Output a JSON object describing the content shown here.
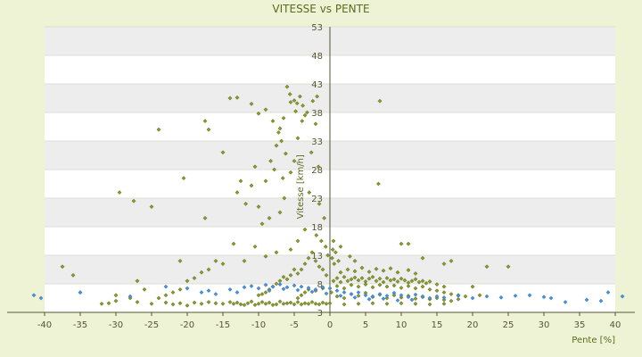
{
  "chart_data": {
    "type": "scatter",
    "title": "VITESSE vs PENTE",
    "xlabel": "Pente [%]",
    "ylabel": "Vitesse [km/h]",
    "xlim": [
      -40,
      40
    ],
    "ylim": [
      3,
      53
    ],
    "xticks": [
      -40,
      -35,
      -30,
      -25,
      -20,
      -15,
      -10,
      -5,
      0,
      5,
      10,
      15,
      20,
      25,
      30,
      35,
      40
    ],
    "yticks": [
      3,
      8,
      13,
      18,
      23,
      28,
      33,
      38,
      43,
      48,
      53
    ],
    "grid": true,
    "banded_background": true,
    "colors": {
      "background": "#eef3d6",
      "plot_band_light": "#ffffff",
      "plot_band_dark": "#ededed",
      "axis": "#555533",
      "text": "#5a6b1f",
      "series_green": "#8a9a2a",
      "series_blue": "#4a90d9"
    },
    "series": [
      {
        "color": "#8a9a2a",
        "points": [
          [
            -14,
            40.5
          ],
          [
            -13,
            40.6
          ],
          [
            -11,
            39.5
          ],
          [
            -10,
            37.8
          ],
          [
            -9,
            38.5
          ],
          [
            -8,
            36.5
          ],
          [
            -7,
            35.2
          ],
          [
            -6,
            42.5
          ],
          [
            -5.6,
            41.2
          ],
          [
            -5,
            40.1
          ],
          [
            -4.6,
            39.6
          ],
          [
            -4.2,
            40.8
          ],
          [
            -3.8,
            39.2
          ],
          [
            -3.5,
            37.5
          ],
          [
            -5.5,
            39.8
          ],
          [
            -4.8,
            38.2
          ],
          [
            -6.5,
            37.0
          ],
          [
            -7.2,
            34.5
          ],
          [
            -6.8,
            33.0
          ],
          [
            -7.5,
            32.2
          ],
          [
            -8.3,
            29.5
          ],
          [
            -6.2,
            30.8
          ],
          [
            -7.8,
            28.0
          ],
          [
            -6.6,
            26.5
          ],
          [
            -9,
            26.0
          ],
          [
            -10.5,
            28.5
          ],
          [
            -11,
            25.2
          ],
          [
            -12.5,
            26.0
          ],
          [
            -13,
            24.0
          ],
          [
            -11.8,
            22.0
          ],
          [
            -10,
            21.5
          ],
          [
            -9.5,
            18.5
          ],
          [
            -8.5,
            19.5
          ],
          [
            -7,
            20.5
          ],
          [
            -6.4,
            23.0
          ],
          [
            -5.5,
            27.5
          ],
          [
            -5,
            29.5
          ],
          [
            -4.5,
            33.5
          ],
          [
            -3.9,
            36.5
          ],
          [
            -3.2,
            38.0
          ],
          [
            -2.4,
            40.0
          ],
          [
            -1.8,
            40.8
          ],
          [
            -2,
            36.0
          ],
          [
            -2.6,
            31.0
          ],
          [
            -1.6,
            28.5
          ],
          [
            -2.9,
            24.0
          ],
          [
            -1.5,
            22.0
          ],
          [
            -0.8,
            19.5
          ],
          [
            -3.5,
            17.5
          ],
          [
            -4.5,
            15.5
          ],
          [
            -5.5,
            14.0
          ],
          [
            -7.5,
            13.5
          ],
          [
            -9,
            12.8
          ],
          [
            -10.5,
            14.5
          ],
          [
            -12,
            12.0
          ],
          [
            -13.5,
            15.0
          ],
          [
            -15,
            11.5
          ],
          [
            -16,
            12.0
          ],
          [
            -17,
            10.5
          ],
          [
            -18,
            10.0
          ],
          [
            -19,
            9.0
          ],
          [
            -20,
            8.5
          ],
          [
            -21,
            7.0
          ],
          [
            -22,
            6.5
          ],
          [
            -23,
            6.0
          ],
          [
            -24,
            5.5
          ],
          [
            -26,
            7.0
          ],
          [
            -27,
            8.5
          ],
          [
            -28,
            5.5
          ],
          [
            -30,
            6.0
          ],
          [
            -32,
            4.5
          ],
          [
            -36,
            9.5
          ],
          [
            -37.5,
            11.0
          ],
          [
            -35,
            6.5
          ],
          [
            -24,
            35.0
          ],
          [
            -29.5,
            24.0
          ],
          [
            -27.5,
            22.5
          ],
          [
            -25,
            21.5
          ],
          [
            -20.5,
            26.5
          ],
          [
            -17.5,
            36.5
          ],
          [
            -17,
            35.0
          ],
          [
            -15,
            31.0
          ],
          [
            -17.5,
            19.5
          ],
          [
            -21,
            12.0
          ],
          [
            7,
            40.0
          ],
          [
            6.8,
            25.5
          ],
          [
            0.5,
            15.5
          ],
          [
            10,
            15.0
          ],
          [
            11,
            15.0
          ],
          [
            13,
            12.5
          ],
          [
            16,
            11.5
          ],
          [
            17,
            12.0
          ],
          [
            22,
            11.0
          ],
          [
            25,
            11.0
          ],
          [
            20,
            7.5
          ],
          [
            21,
            6.0
          ],
          [
            -30,
            5.0
          ],
          [
            -25,
            4.5
          ],
          [
            -20,
            4.2
          ],
          [
            -15,
            4.5
          ],
          [
            -12,
            4.3
          ],
          [
            -10,
            4.5
          ],
          [
            -8,
            4.3
          ],
          [
            -6,
            4.6
          ],
          [
            -4,
            4.4
          ],
          [
            -2,
            4.5
          ],
          [
            0,
            4.6
          ],
          [
            2,
            4.4
          ],
          [
            4,
            4.5
          ],
          [
            6,
            4.6
          ],
          [
            8,
            4.5
          ],
          [
            10,
            4.6
          ],
          [
            12,
            4.5
          ],
          [
            14,
            4.4
          ],
          [
            16,
            4.5
          ],
          [
            -14,
            4.8
          ],
          [
            -13.5,
            4.5
          ],
          [
            -13,
            4.7
          ],
          [
            -12.5,
            4.4
          ],
          [
            -11.5,
            4.6
          ],
          [
            -11,
            4.9
          ],
          [
            -10.5,
            4.3
          ],
          [
            -9.5,
            4.8
          ],
          [
            -9,
            4.5
          ],
          [
            -8.5,
            4.7
          ],
          [
            -7.5,
            4.4
          ],
          [
            -7,
            4.9
          ],
          [
            -6.5,
            4.5
          ],
          [
            -5.5,
            4.7
          ],
          [
            -5,
            4.4
          ],
          [
            -4.5,
            4.8
          ],
          [
            -3.5,
            4.6
          ],
          [
            -3,
            4.5
          ],
          [
            -2.5,
            4.8
          ],
          [
            -1.5,
            4.4
          ],
          [
            -1,
            4.7
          ],
          [
            -0.5,
            4.5
          ],
          [
            -16,
            4.6
          ],
          [
            -17,
            4.8
          ],
          [
            -18,
            4.5
          ],
          [
            -19,
            4.7
          ],
          [
            -21,
            4.6
          ],
          [
            -22,
            4.4
          ],
          [
            -31,
            4.6
          ],
          [
            -27,
            4.8
          ],
          [
            -23,
            4.7
          ],
          [
            0.5,
            8.5
          ],
          [
            1,
            9.0
          ],
          [
            1.5,
            8.3
          ],
          [
            2,
            9.2
          ],
          [
            2.5,
            8.5
          ],
          [
            3,
            8.8
          ],
          [
            3.5,
            9.1
          ],
          [
            4,
            8.6
          ],
          [
            4.5,
            9.0
          ],
          [
            5,
            8.4
          ],
          [
            5.5,
            8.9
          ],
          [
            6,
            9.2
          ],
          [
            6.5,
            8.5
          ],
          [
            7,
            8.9
          ],
          [
            7.5,
            8.3
          ],
          [
            8,
            9.0
          ],
          [
            8.5,
            8.6
          ],
          [
            9,
            8.8
          ],
          [
            9.5,
            8.4
          ],
          [
            10,
            8.9
          ],
          [
            10.5,
            8.6
          ],
          [
            11,
            8.2
          ],
          [
            11.5,
            8.5
          ],
          [
            12,
            8.8
          ],
          [
            12.5,
            8.3
          ],
          [
            13,
            8.5
          ],
          [
            13.5,
            8.1
          ],
          [
            14,
            8.4
          ],
          [
            15,
            7.9
          ],
          [
            16,
            7.5
          ],
          [
            1,
            7.6
          ],
          [
            2,
            7.2
          ],
          [
            3,
            7.8
          ],
          [
            4,
            7.5
          ],
          [
            5,
            7.9
          ],
          [
            6,
            7.4
          ],
          [
            7,
            7.8
          ],
          [
            8,
            7.5
          ],
          [
            9,
            7.7
          ],
          [
            10,
            7.3
          ],
          [
            11,
            7.6
          ],
          [
            12,
            7.2
          ],
          [
            13,
            7.5
          ],
          [
            14,
            7.0
          ],
          [
            15,
            6.8
          ],
          [
            16,
            6.5
          ],
          [
            17,
            6.2
          ],
          [
            18,
            6.0
          ],
          [
            19,
            5.8
          ],
          [
            1.5,
            10.0
          ],
          [
            2.5,
            10.5
          ],
          [
            3.5,
            10.2
          ],
          [
            4.5,
            10.8
          ],
          [
            5.5,
            10.1
          ],
          [
            6.5,
            10.6
          ],
          [
            7.5,
            10.3
          ],
          [
            8.5,
            10.7
          ],
          [
            9.5,
            10.0
          ],
          [
            11,
            10.4
          ],
          [
            12,
            9.8
          ],
          [
            -0.5,
            9.5
          ],
          [
            -1,
            10.5
          ],
          [
            -1.5,
            11.0
          ],
          [
            -2,
            12.0
          ],
          [
            -2.5,
            13.5
          ],
          [
            -3,
            12.5
          ],
          [
            -3.5,
            11.5
          ],
          [
            -4,
            10.5
          ],
          [
            -4.5,
            9.8
          ],
          [
            -5,
            10.5
          ],
          [
            -5.5,
            9.5
          ],
          [
            -6,
            8.8
          ],
          [
            -6.5,
            9.2
          ],
          [
            -7,
            8.5
          ],
          [
            -7.5,
            8.0
          ],
          [
            -8,
            7.5
          ],
          [
            -8.5,
            7.0
          ],
          [
            -9,
            6.5
          ],
          [
            -9.5,
            6.2
          ],
          [
            -10,
            6.0
          ],
          [
            0.3,
            12.5
          ],
          [
            0.6,
            11.5
          ],
          [
            1.2,
            12.0
          ],
          [
            0.8,
            13.5
          ],
          [
            1.5,
            14.5
          ],
          [
            0.4,
            14.0
          ],
          [
            2.8,
            12.8
          ],
          [
            3.5,
            12.0
          ],
          [
            -0.3,
            13.0
          ],
          [
            -0.6,
            14.5
          ],
          [
            -1.2,
            15.5
          ],
          [
            -1.9,
            16.5
          ],
          [
            -3,
            7.0
          ],
          [
            -3.5,
            6.5
          ],
          [
            -4,
            6.0
          ],
          [
            -4.5,
            5.5
          ],
          [
            -2,
            6.8
          ],
          [
            -1,
            7.2
          ],
          [
            0.2,
            6.5
          ],
          [
            1,
            5.8
          ],
          [
            2,
            5.5
          ],
          [
            3,
            6.2
          ],
          [
            4,
            5.9
          ],
          [
            5,
            6.4
          ],
          [
            6,
            5.7
          ],
          [
            7,
            6.1
          ],
          [
            8,
            5.5
          ],
          [
            9,
            6.0
          ],
          [
            10,
            5.6
          ],
          [
            11,
            5.9
          ],
          [
            12,
            5.4
          ],
          [
            13,
            5.7
          ],
          [
            14,
            5.3
          ],
          [
            15,
            5.5
          ],
          [
            16,
            5.2
          ],
          [
            17,
            5.0
          ],
          [
            18,
            5.3
          ]
        ]
      },
      {
        "color": "#4a90d9",
        "points": [
          [
            -41.5,
            6.0
          ],
          [
            -40.5,
            5.5
          ],
          [
            -35,
            6.5
          ],
          [
            -28,
            5.8
          ],
          [
            -23,
            7.5
          ],
          [
            -20,
            7.2
          ],
          [
            -18,
            6.5
          ],
          [
            -17,
            6.8
          ],
          [
            -16,
            6.2
          ],
          [
            -14,
            7.0
          ],
          [
            -12,
            7.4
          ],
          [
            -11,
            7.6
          ],
          [
            -10,
            7.2
          ],
          [
            -9,
            7.8
          ],
          [
            -8,
            7.5
          ],
          [
            -7,
            7.9
          ],
          [
            -6,
            7.4
          ],
          [
            -5,
            7.7
          ],
          [
            -4,
            7.5
          ],
          [
            -3,
            7.3
          ],
          [
            -2,
            7.0
          ],
          [
            -1,
            7.4
          ],
          [
            0,
            7.2
          ],
          [
            1,
            6.8
          ],
          [
            2,
            6.5
          ],
          [
            3,
            6.2
          ],
          [
            4,
            6.5
          ],
          [
            5,
            6.0
          ],
          [
            6,
            5.8
          ],
          [
            7,
            6.2
          ],
          [
            8,
            5.9
          ],
          [
            9,
            6.4
          ],
          [
            10,
            6.0
          ],
          [
            11,
            5.7
          ],
          [
            12,
            6.1
          ],
          [
            13,
            5.8
          ],
          [
            14,
            5.5
          ],
          [
            15,
            5.8
          ],
          [
            16,
            5.6
          ],
          [
            18,
            5.9
          ],
          [
            20,
            5.5
          ],
          [
            22,
            5.8
          ],
          [
            24,
            5.6
          ],
          [
            26,
            5.9
          ],
          [
            28,
            6.0
          ],
          [
            30,
            5.7
          ],
          [
            31,
            5.5
          ],
          [
            33,
            4.8
          ],
          [
            36,
            5.2
          ],
          [
            38,
            5.0
          ],
          [
            39,
            6.5
          ],
          [
            41,
            5.8
          ],
          [
            -13,
            6.5
          ],
          [
            -8.5,
            6.8
          ],
          [
            -6.5,
            7.1
          ],
          [
            -4.5,
            6.9
          ],
          [
            -2.5,
            6.6
          ],
          [
            -0.5,
            6.3
          ],
          [
            1.5,
            5.9
          ],
          [
            3.5,
            5.6
          ],
          [
            5.5,
            5.3
          ],
          [
            7.5,
            5.4
          ],
          [
            9.5,
            5.1
          ],
          [
            11.5,
            5.2
          ]
        ]
      }
    ]
  }
}
